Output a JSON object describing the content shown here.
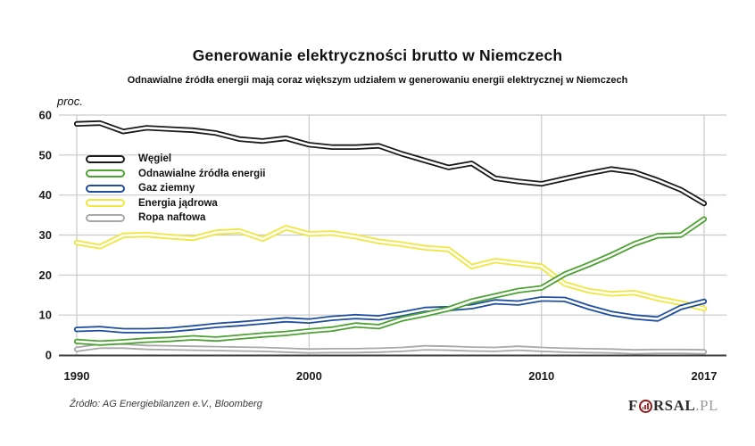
{
  "page": {
    "title": "Generowanie elektryczności brutto w Niemczech",
    "subtitle": "Odnawialne źródła energii mają coraz większym udziałem w generowaniu energii elektrycznej w Niemczech",
    "unit_label": "proc.",
    "source": "Źródło: AG Energiebilanzen e.V., Bloomberg",
    "logo": {
      "prefix": "F",
      "mid": "RSAL",
      "tld": ".PL"
    }
  },
  "chart_data": {
    "type": "line",
    "title": "Generowanie elektryczności brutto w Niemczech",
    "subtitle": "Odnawialne źródła energii mają coraz większym udziałem w generowaniu energii elektrycznej w Niemczech",
    "ylabel": "proc.",
    "xlabel": "",
    "ylim": [
      0,
      60
    ],
    "y_ticks": [
      0,
      10,
      20,
      30,
      40,
      50,
      60
    ],
    "x_ticks": [
      1990,
      2000,
      2010,
      2017
    ],
    "x_range": [
      1990,
      2017
    ],
    "grid": true,
    "legend_position": "upper-left-inside",
    "x": [
      1990,
      1991,
      1992,
      1993,
      1994,
      1995,
      1996,
      1997,
      1998,
      1999,
      2000,
      2001,
      2002,
      2003,
      2004,
      2005,
      2006,
      2007,
      2008,
      2009,
      2010,
      2011,
      2012,
      2013,
      2014,
      2015,
      2016,
      2017
    ],
    "series": [
      {
        "name": "Węgiel",
        "color": "#1a1a1a",
        "values": [
          57.8,
          58.0,
          55.9,
          56.8,
          56.5,
          56.2,
          55.5,
          54.0,
          53.5,
          54.2,
          52.6,
          52.0,
          52.0,
          52.3,
          50.3,
          48.6,
          46.9,
          47.9,
          44.2,
          43.4,
          42.8,
          44.1,
          45.4,
          46.5,
          45.7,
          43.7,
          41.3,
          37.9
        ]
      },
      {
        "name": "Odnawialne źródła energii",
        "color": "#4ca232",
        "values": [
          3.4,
          3.0,
          3.3,
          3.7,
          3.9,
          4.3,
          4.0,
          4.5,
          5.0,
          5.4,
          6.0,
          6.5,
          7.5,
          7.1,
          9.0,
          10.2,
          11.5,
          13.5,
          14.8,
          16.1,
          16.8,
          20.2,
          22.5,
          25.0,
          27.8,
          29.8,
          30.0,
          34.0
        ]
      },
      {
        "name": "Gaz ziemny",
        "color": "#1f4e9f",
        "values": [
          6.4,
          6.6,
          6.1,
          6.1,
          6.3,
          6.8,
          7.4,
          7.8,
          8.3,
          8.8,
          8.5,
          9.2,
          9.6,
          9.3,
          10.3,
          11.4,
          11.6,
          12.1,
          13.3,
          13.0,
          14.0,
          13.9,
          12.0,
          10.4,
          9.5,
          9.0,
          11.9,
          13.4
        ]
      },
      {
        "name": "Energia jądrowa",
        "color": "#efe73e",
        "values": [
          28.1,
          27.1,
          29.9,
          30.1,
          29.6,
          29.2,
          30.7,
          31.0,
          29.0,
          31.8,
          30.3,
          30.5,
          29.6,
          28.4,
          27.7,
          26.8,
          26.4,
          22.1,
          23.6,
          22.9,
          22.2,
          17.8,
          16.1,
          15.3,
          15.6,
          14.1,
          13.0,
          11.6
        ]
      },
      {
        "name": "Ropa naftowa",
        "color": "#a8a8a8",
        "values": [
          1.4,
          2.2,
          2.2,
          1.9,
          1.8,
          1.7,
          1.6,
          1.5,
          1.4,
          1.2,
          1.0,
          1.1,
          1.1,
          1.2,
          1.4,
          1.8,
          1.7,
          1.5,
          1.4,
          1.7,
          1.4,
          1.2,
          1.1,
          1.0,
          0.8,
          0.9,
          0.9,
          0.8
        ]
      }
    ],
    "colors": {
      "grid": "#c9c9c9",
      "axis": "#3d3d3d",
      "text": "#1a1a1a"
    }
  }
}
